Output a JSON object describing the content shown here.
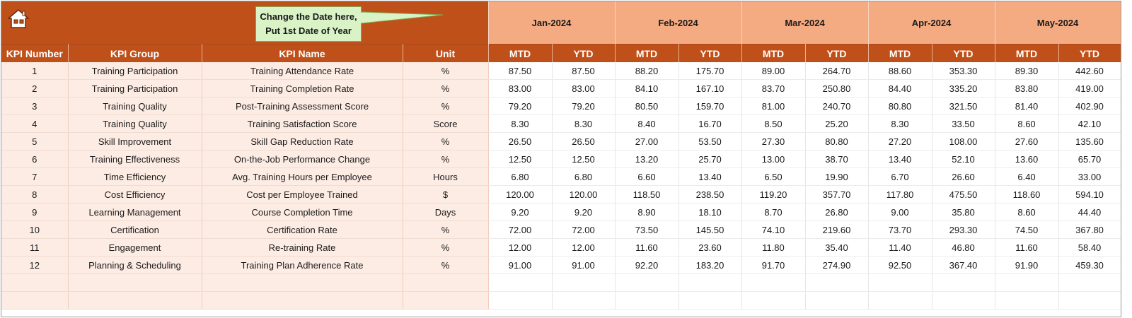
{
  "callout": {
    "line1": "Change the Date here,",
    "line2": "Put 1st Date of Year"
  },
  "months": [
    "Jan-2024",
    "Feb-2024",
    "Mar-2024",
    "Apr-2024",
    "May-2024"
  ],
  "headers": {
    "kpi_number": "KPI Number",
    "kpi_group": "KPI Group",
    "kpi_name": "KPI Name",
    "unit": "Unit",
    "mtd": "MTD",
    "ytd": "YTD"
  },
  "rows": [
    {
      "num": "1",
      "group": "Training Participation",
      "name": "Training Attendance Rate",
      "unit": "%",
      "values": [
        "87.50",
        "87.50",
        "88.20",
        "175.70",
        "89.00",
        "264.70",
        "88.60",
        "353.30",
        "89.30",
        "442.60"
      ]
    },
    {
      "num": "2",
      "group": "Training Participation",
      "name": "Training Completion Rate",
      "unit": "%",
      "values": [
        "83.00",
        "83.00",
        "84.10",
        "167.10",
        "83.70",
        "250.80",
        "84.40",
        "335.20",
        "83.80",
        "419.00"
      ]
    },
    {
      "num": "3",
      "group": "Training Quality",
      "name": "Post-Training Assessment Score",
      "unit": "%",
      "values": [
        "79.20",
        "79.20",
        "80.50",
        "159.70",
        "81.00",
        "240.70",
        "80.80",
        "321.50",
        "81.40",
        "402.90"
      ]
    },
    {
      "num": "4",
      "group": "Training Quality",
      "name": "Training Satisfaction Score",
      "unit": "Score",
      "values": [
        "8.30",
        "8.30",
        "8.40",
        "16.70",
        "8.50",
        "25.20",
        "8.30",
        "33.50",
        "8.60",
        "42.10"
      ]
    },
    {
      "num": "5",
      "group": "Skill Improvement",
      "name": "Skill Gap Reduction Rate",
      "unit": "%",
      "values": [
        "26.50",
        "26.50",
        "27.00",
        "53.50",
        "27.30",
        "80.80",
        "27.20",
        "108.00",
        "27.60",
        "135.60"
      ]
    },
    {
      "num": "6",
      "group": "Training Effectiveness",
      "name": "On-the-Job Performance Change",
      "unit": "%",
      "values": [
        "12.50",
        "12.50",
        "13.20",
        "25.70",
        "13.00",
        "38.70",
        "13.40",
        "52.10",
        "13.60",
        "65.70"
      ]
    },
    {
      "num": "7",
      "group": "Time Efficiency",
      "name": "Avg. Training Hours per Employee",
      "unit": "Hours",
      "values": [
        "6.80",
        "6.80",
        "6.60",
        "13.40",
        "6.50",
        "19.90",
        "6.70",
        "26.60",
        "6.40",
        "33.00"
      ]
    },
    {
      "num": "8",
      "group": "Cost Efficiency",
      "name": "Cost per Employee Trained",
      "unit": "$",
      "values": [
        "120.00",
        "120.00",
        "118.50",
        "238.50",
        "119.20",
        "357.70",
        "117.80",
        "475.50",
        "118.60",
        "594.10"
      ]
    },
    {
      "num": "9",
      "group": "Learning Management",
      "name": "Course Completion Time",
      "unit": "Days",
      "values": [
        "9.20",
        "9.20",
        "8.90",
        "18.10",
        "8.70",
        "26.80",
        "9.00",
        "35.80",
        "8.60",
        "44.40"
      ]
    },
    {
      "num": "10",
      "group": "Certification",
      "name": "Certification Rate",
      "unit": "%",
      "values": [
        "72.00",
        "72.00",
        "73.50",
        "145.50",
        "74.10",
        "219.60",
        "73.70",
        "293.30",
        "74.50",
        "367.80"
      ]
    },
    {
      "num": "11",
      "group": "Engagement",
      "name": "Re-training Rate",
      "unit": "%",
      "values": [
        "12.00",
        "12.00",
        "11.60",
        "23.60",
        "11.80",
        "35.40",
        "11.40",
        "46.80",
        "11.60",
        "58.40"
      ]
    },
    {
      "num": "12",
      "group": "Planning & Scheduling",
      "name": "Training Plan Adherence Rate",
      "unit": "%",
      "values": [
        "91.00",
        "91.00",
        "92.20",
        "183.20",
        "91.70",
        "274.90",
        "92.50",
        "367.40",
        "91.90",
        "459.30"
      ]
    }
  ],
  "colors": {
    "header_dark": "#c0501a",
    "header_light": "#f4ab82",
    "left_fill": "#fdece4",
    "callout_fill": "#d9f2c6"
  }
}
